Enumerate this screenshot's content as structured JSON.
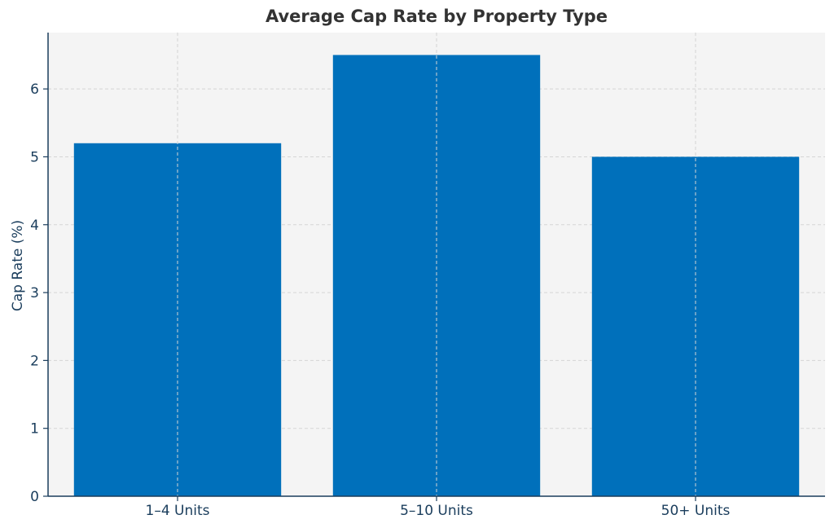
{
  "chart_data": {
    "type": "bar",
    "title": "Average Cap Rate by Property Type",
    "xlabel": "",
    "ylabel": "Cap Rate (%)",
    "categories": [
      "1–4 Units",
      "5–10 Units",
      "50+ Units"
    ],
    "values": [
      5.2,
      6.5,
      5.0
    ],
    "yticks": [
      "0",
      "1",
      "2",
      "3",
      "4",
      "5",
      "6"
    ],
    "ylim": [
      0,
      6.83
    ],
    "grid": true,
    "legend": "none"
  },
  "colors": {
    "bar": "#0070bb",
    "plot_background": "#f4f4f4",
    "grid": "#d5d5d5",
    "axis": "#1a3d5c",
    "title": "#333333"
  }
}
